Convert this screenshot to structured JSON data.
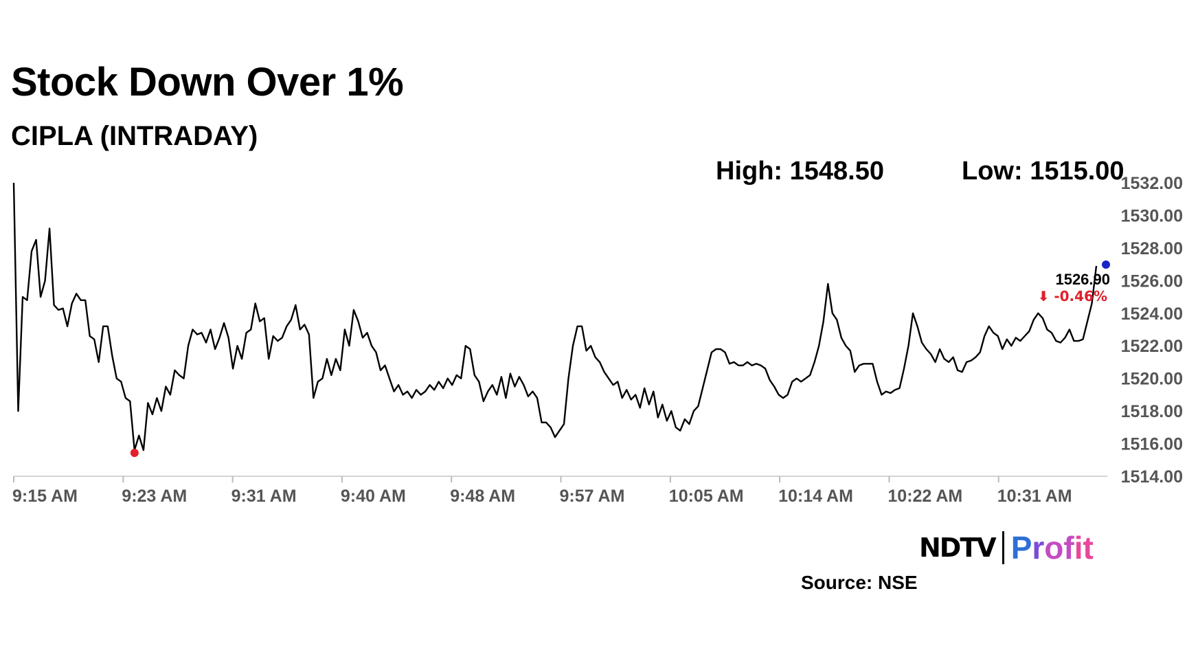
{
  "title": "Stock Down Over 1%",
  "subtitle": "CIPLA (INTRADAY)",
  "high_label": "High: 1548.50",
  "low_label": "Low: 1515.00",
  "source": "Source: NSE",
  "brand": {
    "left": "NDTV",
    "right": "Profit"
  },
  "chart_data": {
    "type": "line",
    "ylim": [
      1514,
      1532
    ],
    "y_ticks": [
      1514,
      1516,
      1518,
      1520,
      1522,
      1524,
      1526,
      1528,
      1530,
      1532
    ],
    "y_tick_labels": [
      "1514.00",
      "1516.00",
      "1518.00",
      "1520.00",
      "1522.00",
      "1524.00",
      "1526.00",
      "1528.00",
      "1530.00",
      "1532.00"
    ],
    "x_tick_labels": [
      "9:15 AM",
      "9:23 AM",
      "9:31 AM",
      "9:40 AM",
      "9:48 AM",
      "9:57 AM",
      "10:05 AM",
      "10:14 AM",
      "10:22 AM",
      "10:31 AM"
    ],
    "last_value_label": "1526.90",
    "change_label": "⬇ -0.46%",
    "line_color": "#000000",
    "low_marker_color": "#e0202a",
    "last_marker_color": "#1a23c8",
    "change_color": "#e0202a",
    "grid": false,
    "series": [
      {
        "values": [
          1532.0,
          1518.0,
          1525.0,
          1524.8,
          1527.8,
          1528.5,
          1525.0,
          1526.0,
          1529.2,
          1524.5,
          1524.2,
          1524.3,
          1523.2,
          1524.6,
          1525.2,
          1524.8,
          1524.8,
          1522.6,
          1522.4,
          1521.0,
          1523.2,
          1523.2,
          1521.4,
          1520.0,
          1519.8,
          1518.8,
          1518.6,
          1515.6,
          1516.5,
          1515.6,
          1518.5,
          1517.8,
          1518.8,
          1518.0,
          1519.5,
          1519.0,
          1520.5,
          1520.2,
          1520.0,
          1522.0,
          1523.0,
          1522.7,
          1522.8,
          1522.2,
          1523.0,
          1521.8,
          1522.5,
          1523.4,
          1522.5,
          1520.6,
          1522.0,
          1521.2,
          1522.8,
          1523.0,
          1524.6,
          1523.5,
          1523.7,
          1521.2,
          1522.6,
          1522.3,
          1522.5,
          1523.2,
          1523.6,
          1524.5,
          1523.0,
          1523.3,
          1522.7,
          1518.8,
          1519.8,
          1520.0,
          1521.2,
          1520.2,
          1521.2,
          1520.5,
          1523.0,
          1522.0,
          1524.2,
          1523.5,
          1522.5,
          1522.8,
          1522.0,
          1521.6,
          1520.5,
          1520.8,
          1520.0,
          1519.2,
          1519.6,
          1519.0,
          1519.2,
          1518.8,
          1519.3,
          1519.0,
          1519.2,
          1519.6,
          1519.3,
          1519.8,
          1519.4,
          1520.0,
          1519.6,
          1520.2,
          1520.0,
          1522.0,
          1521.8,
          1520.2,
          1519.8,
          1518.6,
          1519.2,
          1519.6,
          1519.0,
          1520.1,
          1518.8,
          1520.3,
          1519.5,
          1520.1,
          1519.6,
          1518.9,
          1519.2,
          1518.8,
          1517.3,
          1517.3,
          1517.0,
          1516.4,
          1516.8,
          1517.2,
          1520.0,
          1522.0,
          1523.2,
          1523.2,
          1521.7,
          1522.0,
          1521.3,
          1521.0,
          1520.4,
          1520.0,
          1519.6,
          1519.8,
          1518.8,
          1519.3,
          1518.7,
          1519.0,
          1518.2,
          1519.4,
          1518.4,
          1519.2,
          1517.6,
          1518.4,
          1517.4,
          1518.0,
          1517.0,
          1516.8,
          1517.5,
          1517.2,
          1518.0,
          1518.3,
          1519.4,
          1520.5,
          1521.6,
          1521.8,
          1521.8,
          1521.6,
          1520.9,
          1521.0,
          1520.8,
          1520.8,
          1521.0,
          1520.8,
          1520.9,
          1520.8,
          1520.6,
          1519.9,
          1519.5,
          1519.0,
          1518.8,
          1519.0,
          1519.8,
          1520.0,
          1519.8,
          1520.0,
          1520.2,
          1521.0,
          1522.0,
          1523.5,
          1525.8,
          1524.0,
          1523.6,
          1522.5,
          1522.0,
          1521.7,
          1520.4,
          1520.8,
          1520.9,
          1520.9,
          1520.9,
          1519.8,
          1519.0,
          1519.2,
          1519.1,
          1519.3,
          1519.4,
          1520.6,
          1522.0,
          1524.0,
          1523.2,
          1522.2,
          1521.8,
          1521.5,
          1521.0,
          1521.8,
          1521.2,
          1521.0,
          1521.3,
          1520.5,
          1520.4,
          1521.0,
          1521.1,
          1521.3,
          1521.6,
          1522.6,
          1523.2,
          1522.8,
          1522.6,
          1521.8,
          1522.4,
          1522.0,
          1522.5,
          1522.3,
          1522.6,
          1522.9,
          1523.6,
          1524.0,
          1523.7,
          1523.0,
          1522.8,
          1522.3,
          1522.2,
          1522.5,
          1523.0,
          1522.3,
          1522.3,
          1522.4,
          1523.5,
          1524.6,
          1526.9
        ]
      }
    ]
  }
}
